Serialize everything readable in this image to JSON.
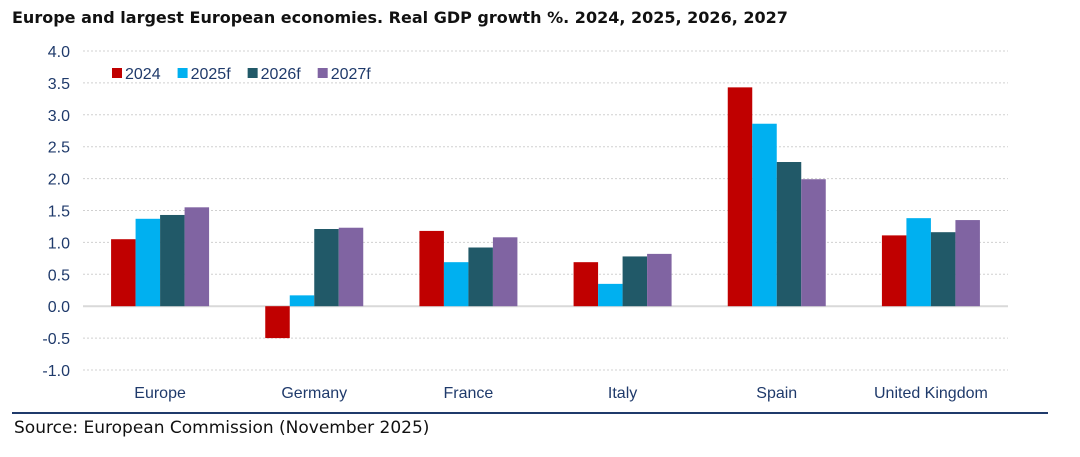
{
  "chart_data": {
    "type": "bar",
    "title": "Europe and largest European economies. Real GDP growth %. 2024, 2025, 2026, 2027",
    "categories": [
      "Europe",
      "Germany",
      "France",
      "Italy",
      "Spain",
      "United Kingdom"
    ],
    "series": [
      {
        "name": "2024",
        "color": "#c00000",
        "values": [
          1.05,
          -0.5,
          1.18,
          0.69,
          3.43,
          1.11
        ]
      },
      {
        "name": "2025f",
        "color": "#00b0f0",
        "values": [
          1.37,
          0.17,
          0.69,
          0.35,
          2.86,
          1.38
        ]
      },
      {
        "name": "2026f",
        "color": "#215968",
        "values": [
          1.43,
          1.21,
          0.92,
          0.78,
          2.26,
          1.16
        ]
      },
      {
        "name": "2027f",
        "color": "#8064a2",
        "values": [
          1.55,
          1.23,
          1.08,
          0.82,
          1.99,
          1.35
        ]
      }
    ],
    "ylim": [
      -1.0,
      4.0
    ],
    "yticks": [
      "4.0",
      "3.5",
      "3.0",
      "2.5",
      "2.0",
      "1.5",
      "1.0",
      "0.5",
      "0.0",
      "-0.5",
      "-1.0"
    ],
    "grid": true,
    "legend": "top-left",
    "xlabel": "",
    "ylabel": ""
  },
  "source": "Source: European Commission (November 2025)"
}
